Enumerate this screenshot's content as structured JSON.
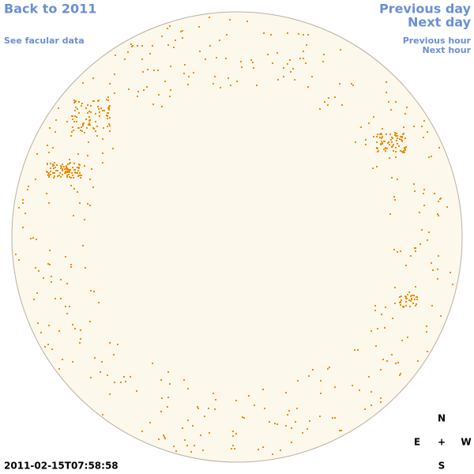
{
  "nav": {
    "back": "Back to 2011",
    "facular": "See facular data",
    "previous_day": "Previous day",
    "next_day": "Next day",
    "previous_hour": "Previous hour",
    "next_hour": "Next hour"
  },
  "timestamp": "2011-02-15T07:58:58",
  "compass": {
    "north": "N",
    "east": "E",
    "center": "+",
    "west": "W",
    "south": "S"
  }
}
